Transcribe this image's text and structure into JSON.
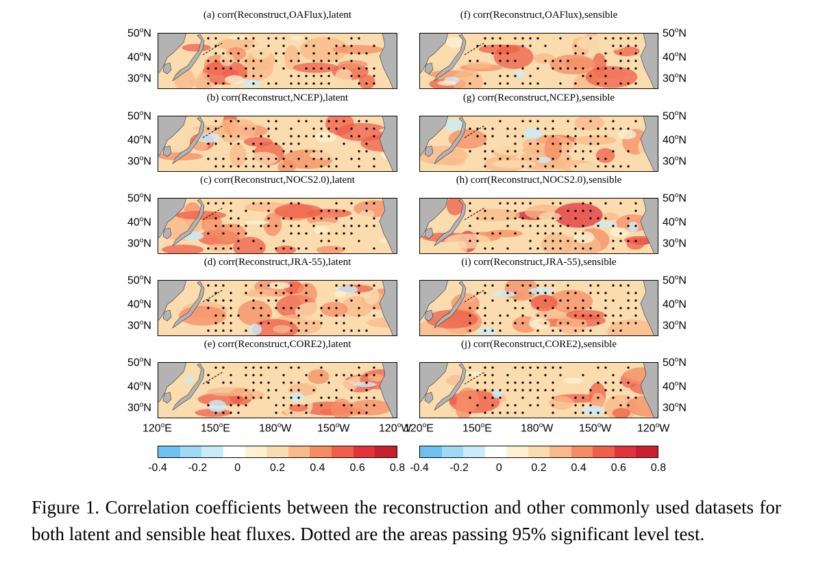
{
  "panels": {
    "left": [
      {
        "title": "(a) corr(Reconstruct,OAFlux),latent"
      },
      {
        "title": "(b) corr(Reconstruct,NCEP),latent"
      },
      {
        "title": "(c) corr(Reconstruct,NOCS2.0),latent"
      },
      {
        "title": "(d) corr(Reconstruct,JRA-55),latent"
      },
      {
        "title": "(e) corr(Reconstruct,CORE2),latent"
      }
    ],
    "right": [
      {
        "title": "(f) corr(Reconstruct,OAFlux),sensible"
      },
      {
        "title": "(g) corr(Reconstruct,NCEP),sensible"
      },
      {
        "title": "(h) corr(Reconstruct,NOCS2.0),sensible"
      },
      {
        "title": "(i) corr(Reconstruct,JRA-55),sensible"
      },
      {
        "title": "(j) corr(Reconstruct,CORE2),sensible"
      }
    ]
  },
  "lat_labels": [
    "50",
    "40",
    "30"
  ],
  "lat_suffix": "N",
  "lon_labels": [
    "120",
    "150",
    "180",
    "150",
    "120"
  ],
  "lon_suffixes": [
    "E",
    "E",
    "W",
    "W",
    "W"
  ],
  "colorbar": {
    "ticks": [
      "-0.4",
      "-0.2",
      "0",
      "0.2",
      "0.4",
      "0.6",
      "0.8"
    ],
    "colors": [
      "#6fbfef",
      "#9fd9f6",
      "#c9ecfb",
      "#ffffff",
      "#fdf1cf",
      "#fbdcae",
      "#f9b98a",
      "#f48d66",
      "#ef5f4a",
      "#e2333b",
      "#c8202f"
    ]
  },
  "colors": {
    "land": "#b3b3b3",
    "ocean_base": "#fbdcae",
    "dots": "#000000"
  },
  "caption": "Figure 1. Correlation coefficients between the reconstruction and other commonly used datasets for both latent and sensible heat fluxes. Dotted are the areas passing 95% significant level test."
}
